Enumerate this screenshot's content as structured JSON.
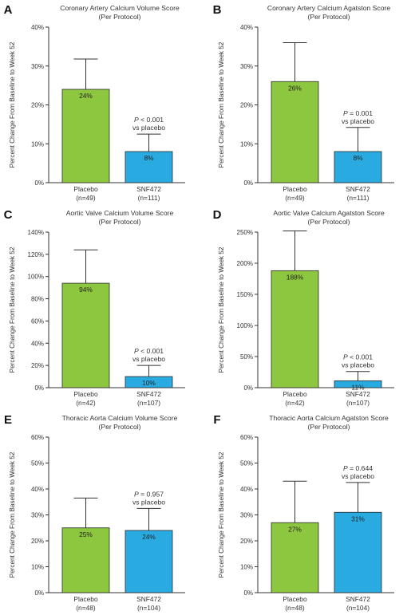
{
  "colors": {
    "placebo": "#8dc63f",
    "snf472": "#29abe2",
    "axis": "#333333"
  },
  "chart_data": [
    {
      "type": "bar",
      "panel": "A",
      "title": "Coronary Artery Calcium Volume Score",
      "subtitle": "(Per Protocol)",
      "ylabel": "Percent Change From Baseline to Week 52",
      "ylim": [
        0,
        40
      ],
      "yticks": [
        "0%",
        "10%",
        "20%",
        "30%",
        "40%"
      ],
      "ytick_values": [
        0,
        10,
        20,
        30,
        40
      ],
      "categories": [
        "Placebo",
        "SNF472"
      ],
      "category_n": [
        "(n=49)",
        "(n=111)"
      ],
      "values": [
        24,
        8
      ],
      "value_labels": [
        "24%",
        "8%"
      ],
      "error_upper": [
        31.8,
        12.5
      ],
      "pvalue": {
        "p": "P",
        "op": "< 0.001",
        "vs": "vs placebo"
      }
    },
    {
      "type": "bar",
      "panel": "B",
      "title": "Coronary Artery Calcium Agatston Score",
      "subtitle": "(Per Protocol)",
      "ylabel": "Percent Change From Baseline to Week 52",
      "ylim": [
        0,
        40
      ],
      "yticks": [
        "0%",
        "10%",
        "20%",
        "30%",
        "40%"
      ],
      "ytick_values": [
        0,
        10,
        20,
        30,
        40
      ],
      "categories": [
        "Placebo",
        "SNF472"
      ],
      "category_n": [
        "(n=49)",
        "(n=111)"
      ],
      "values": [
        26,
        8
      ],
      "value_labels": [
        "26%",
        "8%"
      ],
      "error_upper": [
        36,
        14.2
      ],
      "pvalue": {
        "p": "P",
        "op": "= 0.001",
        "vs": "vs placebo"
      }
    },
    {
      "type": "bar",
      "panel": "C",
      "title": "Aortic Valve Calcium Volume Score",
      "subtitle": "(Per Protocol)",
      "ylabel": "Percent Change From Baseline to Week 52",
      "ylim": [
        0,
        140
      ],
      "yticks": [
        "0%",
        "20%",
        "40%",
        "60%",
        "80%",
        "100%",
        "120%",
        "140%"
      ],
      "ytick_values": [
        0,
        20,
        40,
        60,
        80,
        100,
        120,
        140
      ],
      "categories": [
        "Placebo",
        "SNF472"
      ],
      "category_n": [
        "(n=42)",
        "(n=107)"
      ],
      "values": [
        94,
        10
      ],
      "value_labels": [
        "94%",
        "10%"
      ],
      "error_upper": [
        124,
        20
      ],
      "pvalue": {
        "p": "P",
        "op": "< 0.001",
        "vs": "vs placebo"
      }
    },
    {
      "type": "bar",
      "panel": "D",
      "title": "Aortic Valve Calcium Agatston Score",
      "subtitle": "(Per Protocol)",
      "ylabel": "Percent Change From Baseline to Week 52",
      "ylim": [
        0,
        250
      ],
      "yticks": [
        "0%",
        "50%",
        "100%",
        "150%",
        "200%",
        "250%"
      ],
      "ytick_values": [
        0,
        50,
        100,
        150,
        200,
        250
      ],
      "categories": [
        "Placebo",
        "SNF472"
      ],
      "category_n": [
        "(n=42)",
        "(n=107)"
      ],
      "values": [
        188,
        11
      ],
      "value_labels": [
        "188%",
        "11%"
      ],
      "error_upper": [
        252,
        26
      ],
      "pvalue": {
        "p": "P",
        "op": "< 0.001",
        "vs": "vs placebo"
      }
    },
    {
      "type": "bar",
      "panel": "E",
      "title": "Thoracic Aorta Calcium Volume Score",
      "subtitle": "(Per Protocol)",
      "ylabel": "Percent Change From Baseline to Week 52",
      "ylim": [
        0,
        60
      ],
      "yticks": [
        "0%",
        "10%",
        "20%",
        "30%",
        "40%",
        "50%",
        "60%"
      ],
      "ytick_values": [
        0,
        10,
        20,
        30,
        40,
        50,
        60
      ],
      "categories": [
        "Placebo",
        "SNF472"
      ],
      "category_n": [
        "(n=48)",
        "(n=104)"
      ],
      "values": [
        25,
        24
      ],
      "value_labels": [
        "25%",
        "24%"
      ],
      "error_upper": [
        36.5,
        32.5
      ],
      "pvalue": {
        "p": "P",
        "op": "= 0.957",
        "vs": "vs placebo"
      }
    },
    {
      "type": "bar",
      "panel": "F",
      "title": "Thoracic Aorta Calcium Agatston Score",
      "subtitle": "(Per Protocol)",
      "ylabel": "Percent Change From Baseline to Week 52",
      "ylim": [
        0,
        60
      ],
      "yticks": [
        "0%",
        "10%",
        "20%",
        "30%",
        "40%",
        "50%",
        "60%"
      ],
      "ytick_values": [
        0,
        10,
        20,
        30,
        40,
        50,
        60
      ],
      "categories": [
        "Placebo",
        "SNF472"
      ],
      "category_n": [
        "(n=48)",
        "(n=104)"
      ],
      "values": [
        27,
        31
      ],
      "value_labels": [
        "27%",
        "31%"
      ],
      "error_upper": [
        43,
        42.5
      ],
      "pvalue": {
        "p": "P",
        "op": "= 0.644",
        "vs": "vs placebo"
      }
    }
  ]
}
